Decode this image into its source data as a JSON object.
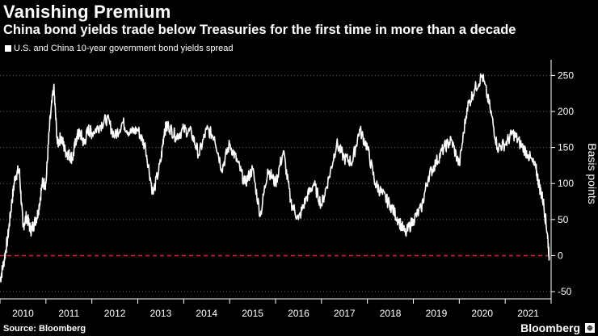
{
  "header": {
    "title": "Vanishing Premium",
    "subtitle": "China bond yields trade below Treasuries for the first time in more than a decade"
  },
  "footer": {
    "source": "Source: Bloomberg",
    "brand": "Bloomberg"
  },
  "colors": {
    "background": "#000000",
    "line": "#ffffff",
    "zero_line": "#e0202b",
    "grid": "#6a6a6a"
  },
  "chart_data": {
    "type": "line",
    "title": "Vanishing Premium",
    "subtitle": "China bond yields trade below Treasuries for the first time in more than a decade",
    "legend": [
      "U.S. and China 10-year government bond yields spread"
    ],
    "xlabel": "",
    "ylabel": "Basis points",
    "xlim": [
      2010.0,
      2022.0
    ],
    "ylim": [
      -60,
      265
    ],
    "yticks": [
      250,
      200,
      150,
      100,
      50,
      0,
      -50
    ],
    "ytick_labels": [
      "250",
      "200",
      "150",
      "100",
      "50",
      "0",
      "-50"
    ],
    "xtick_labels": [
      "2010",
      "2011",
      "2012",
      "2013",
      "2014",
      "2015",
      "2016",
      "2017",
      "2018",
      "2019",
      "2020",
      "2021"
    ],
    "reference_line": {
      "y": 0,
      "style": "dashed",
      "color": "#e0202b"
    },
    "grid": "horizontal-dotted",
    "series": [
      {
        "name": "U.S. and China 10-year government bond yields spread",
        "x": [
          2010.0,
          2010.08,
          2010.17,
          2010.25,
          2010.33,
          2010.42,
          2010.5,
          2010.58,
          2010.67,
          2010.75,
          2010.83,
          2010.92,
          2011.0,
          2011.08,
          2011.17,
          2011.25,
          2011.33,
          2011.42,
          2011.5,
          2011.58,
          2011.67,
          2011.75,
          2011.83,
          2011.92,
          2012.0,
          2012.17,
          2012.33,
          2012.5,
          2012.67,
          2012.83,
          2013.0,
          2013.17,
          2013.33,
          2013.5,
          2013.58,
          2013.67,
          2013.83,
          2014.0,
          2014.17,
          2014.33,
          2014.5,
          2014.67,
          2014.83,
          2015.0,
          2015.17,
          2015.33,
          2015.5,
          2015.67,
          2015.83,
          2016.0,
          2016.17,
          2016.33,
          2016.5,
          2016.67,
          2016.83,
          2017.0,
          2017.17,
          2017.33,
          2017.5,
          2017.67,
          2017.83,
          2018.0,
          2018.17,
          2018.33,
          2018.5,
          2018.67,
          2018.83,
          2019.0,
          2019.17,
          2019.33,
          2019.5,
          2019.67,
          2019.83,
          2020.0,
          2020.17,
          2020.33,
          2020.5,
          2020.67,
          2020.83,
          2021.0,
          2021.17,
          2021.33,
          2021.5,
          2021.67,
          2021.75,
          2021.83,
          2021.92,
          2021.96
        ],
        "values": [
          -35,
          -10,
          25,
          70,
          110,
          120,
          40,
          55,
          35,
          45,
          60,
          100,
          100,
          180,
          235,
          155,
          165,
          145,
          140,
          135,
          165,
          170,
          155,
          175,
          170,
          180,
          190,
          165,
          185,
          170,
          175,
          150,
          85,
          130,
          175,
          180,
          165,
          175,
          170,
          140,
          175,
          165,
          120,
          155,
          130,
          100,
          120,
          55,
          120,
          100,
          145,
          75,
          50,
          80,
          100,
          70,
          110,
          155,
          135,
          130,
          175,
          150,
          100,
          85,
          70,
          50,
          30,
          50,
          65,
          110,
          130,
          150,
          160,
          125,
          205,
          230,
          250,
          205,
          150,
          155,
          170,
          155,
          140,
          120,
          95,
          75,
          30,
          -5
        ]
      }
    ]
  }
}
